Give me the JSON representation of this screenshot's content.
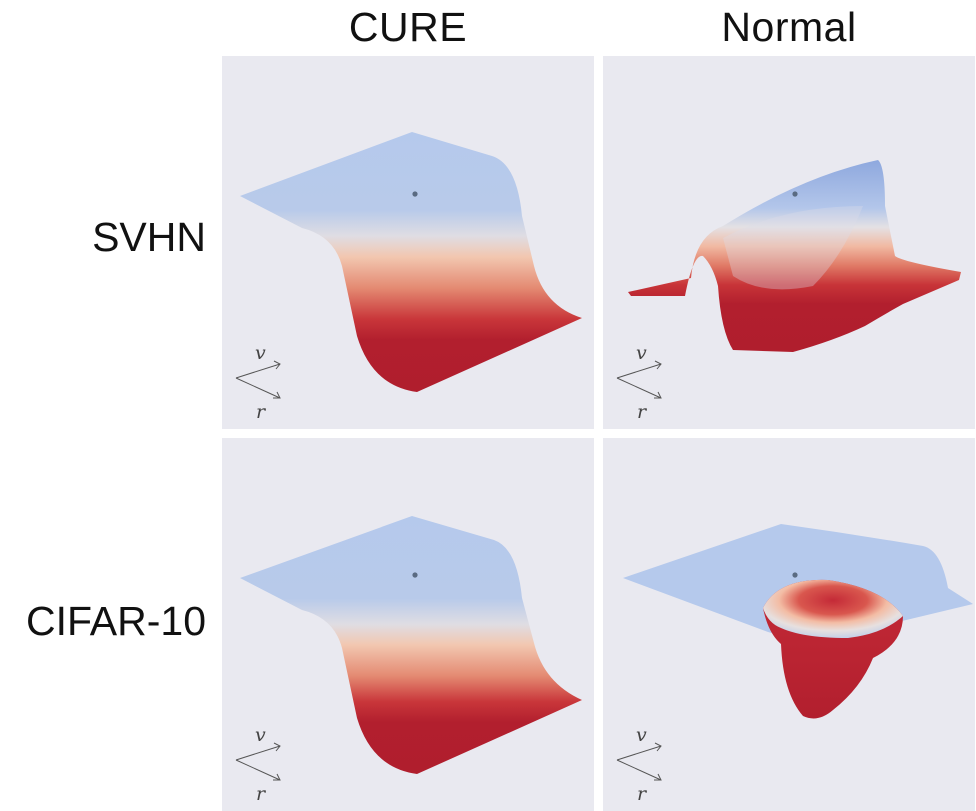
{
  "columns": [
    {
      "label": "CURE"
    },
    {
      "label": "Normal"
    }
  ],
  "rows": [
    {
      "label": "SVHN"
    },
    {
      "label": "CIFAR-10"
    }
  ],
  "axes_inset": {
    "v_label": "v",
    "r_label": "r"
  },
  "colormap": {
    "low": "#b3c8ec",
    "mid": "#e8e0de",
    "high": "#b21f2e"
  },
  "panel_background": "#e9e9f0"
}
